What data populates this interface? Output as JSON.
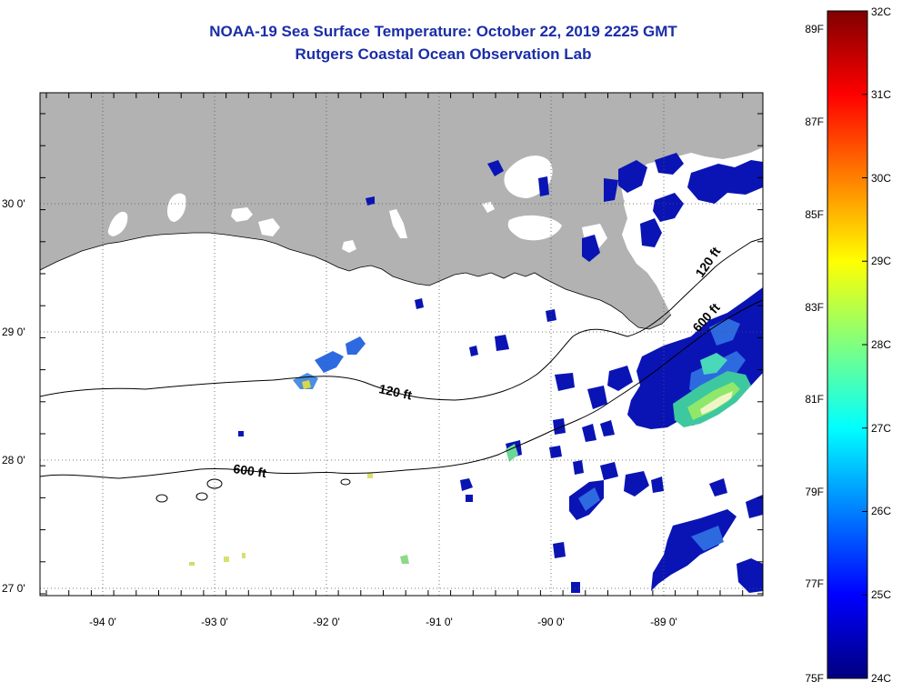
{
  "title": "NOAA-19 Sea Surface Temperature:  October 22, 2019 2225 GMT",
  "subtitle": "Rutgers Coastal Ocean Observation Lab",
  "map": {
    "lat_labels": [
      "30 0'",
      "29 0'",
      "28 0'",
      "27 0'"
    ],
    "lon_labels": [
      "-94 0'",
      "-93 0'",
      "-92 0'",
      "-91 0'",
      "-90 0'",
      "-89 0'"
    ],
    "lat_range": [
      26.95,
      30.85
    ],
    "lon_range": [
      -94.55,
      -88.0
    ],
    "land_color": "#b2b2b2",
    "contour_labels": [
      "120 ft",
      "120 ft",
      "600 ft",
      "600 ft"
    ]
  },
  "colorbar": {
    "celsius_labels": [
      "32C",
      "31C",
      "30C",
      "29C",
      "28C",
      "27C",
      "26C",
      "25C",
      "24C"
    ],
    "fahrenheit_labels": [
      "89F",
      "87F",
      "85F",
      "83F",
      "81F",
      "79F",
      "77F",
      "75F"
    ],
    "range_c": [
      24,
      32
    ],
    "colors": [
      "#00007f",
      "#0000ff",
      "#007fff",
      "#00ffff",
      "#7fff7f",
      "#ffff00",
      "#ff7f00",
      "#ff0000",
      "#7f0000"
    ]
  }
}
